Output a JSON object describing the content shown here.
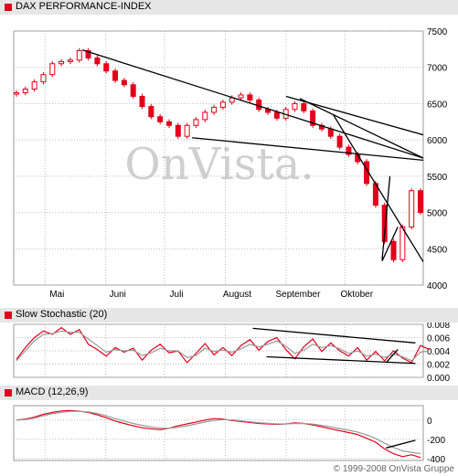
{
  "watermark": "OnVista.",
  "copyright": "© 1999-2008 OnVista Gruppe",
  "colors": {
    "price": "#e2001a",
    "signal": "#999999",
    "trend": "#000000",
    "header_bg": "#e6e6e6",
    "grid": "#bbbbbb"
  },
  "months": [
    "Mai",
    "Juni",
    "Juli",
    "August",
    "September",
    "Oktober"
  ],
  "chart_data": [
    {
      "type": "candlestick",
      "title": "DAX PERFORMANCE-INDEX",
      "x_tick_labels": [
        "Mai",
        "Juni",
        "Juli",
        "August",
        "September",
        "Oktober"
      ],
      "y_ticks": [
        7500,
        7000,
        6500,
        6000,
        5500,
        5000,
        4500,
        4000
      ],
      "ylim": [
        4000,
        7500
      ],
      "grid": true,
      "close_series": [
        6650,
        6700,
        6800,
        6900,
        7050,
        7080,
        7100,
        7230,
        7130,
        7050,
        6950,
        6820,
        6760,
        6600,
        6460,
        6320,
        6250,
        6200,
        6050,
        6200,
        6280,
        6380,
        6450,
        6520,
        6580,
        6620,
        6550,
        6420,
        6380,
        6300,
        6420,
        6500,
        6400,
        6200,
        6150,
        6050,
        5900,
        5800,
        5700,
        5400,
        5100,
        4600,
        4350,
        4800,
        5300,
        5000
      ],
      "trendlines": [
        {
          "x": [
            "2008-05-20",
            "2008-11-10"
          ],
          "y": [
            7240,
            5750
          ]
        },
        {
          "x": [
            "2008-07-15",
            "2008-11-10"
          ],
          "y": [
            6030,
            5720
          ]
        },
        {
          "x": [
            "2008-09-01",
            "2008-11-10"
          ],
          "y": [
            6600,
            6070
          ]
        },
        {
          "x": [
            "2008-09-08",
            "2008-11-10"
          ],
          "y": [
            6570,
            5750
          ]
        },
        {
          "x": [
            "2008-09-25",
            "2008-11-10"
          ],
          "y": [
            6350,
            4320
          ]
        },
        {
          "x": [
            "2008-10-20",
            "2008-10-28"
          ],
          "y": [
            4330,
            4800
          ]
        },
        {
          "x": [
            "2008-10-20",
            "2008-10-24"
          ],
          "y": [
            4350,
            5500
          ]
        }
      ]
    },
    {
      "type": "line",
      "title": "Slow Stochastic (20)",
      "y_ticks": [
        "0.008",
        "0.006",
        "0.004",
        "0.002",
        "0.000"
      ],
      "ylim": [
        0,
        0.008
      ],
      "grid": true,
      "series": [
        {
          "values": [
            0.0027,
            0.0045,
            0.006,
            0.007,
            0.0065,
            0.0075,
            0.0065,
            0.0072,
            0.005,
            0.0042,
            0.0032,
            0.0045,
            0.0038,
            0.0044,
            0.0026,
            0.0041,
            0.005,
            0.0037,
            0.004,
            0.0022,
            0.0036,
            0.0051,
            0.0034,
            0.0045,
            0.0033,
            0.0048,
            0.0057,
            0.0041,
            0.0054,
            0.006,
            0.0042,
            0.0028,
            0.0046,
            0.0058,
            0.0039,
            0.0052,
            0.004,
            0.0032,
            0.0045,
            0.0026,
            0.0039,
            0.0025,
            0.004,
            0.0029,
            0.0022,
            0.0048,
            0.0042
          ]
        },
        {
          "values": [
            0.0025,
            0.004,
            0.0055,
            0.0065,
            0.0066,
            0.007,
            0.0068,
            0.0068,
            0.0058,
            0.0048,
            0.0038,
            0.0042,
            0.004,
            0.0041,
            0.0033,
            0.0037,
            0.0044,
            0.004,
            0.004,
            0.003,
            0.0033,
            0.0044,
            0.0039,
            0.0041,
            0.0038,
            0.0043,
            0.005,
            0.0046,
            0.005,
            0.0055,
            0.0047,
            0.0036,
            0.0041,
            0.005,
            0.0045,
            0.0048,
            0.0043,
            0.0036,
            0.004,
            0.0032,
            0.0035,
            0.003,
            0.0035,
            0.0031,
            0.0025,
            0.0038,
            0.004
          ]
        }
      ],
      "trendlines": [
        {
          "x": [
            "2008-08-15",
            "2008-11-06"
          ],
          "y": [
            0.0074,
            0.0052
          ]
        },
        {
          "x": [
            "2008-08-22",
            "2008-11-06"
          ],
          "y": [
            0.0031,
            0.0021
          ]
        },
        {
          "x": [
            "2008-10-22",
            "2008-10-28"
          ],
          "y": [
            0.0022,
            0.0042
          ]
        }
      ]
    },
    {
      "type": "line",
      "title": "MACD (12,26,9)",
      "y_ticks": [
        "0",
        "-200",
        "-400"
      ],
      "ylim": [
        -420,
        150
      ],
      "grid": true,
      "series": [
        {
          "values": [
            0,
            10,
            30,
            60,
            80,
            95,
            100,
            92,
            80,
            55,
            25,
            -10,
            -35,
            -60,
            -80,
            -90,
            -100,
            -85,
            -60,
            -40,
            -20,
            0,
            15,
            10,
            -5,
            -15,
            -25,
            -35,
            -40,
            -45,
            -40,
            -30,
            -35,
            -50,
            -70,
            -90,
            -110,
            -130,
            -150,
            -190,
            -230,
            -300,
            -350,
            -380,
            -360,
            -390
          ]
        },
        {
          "values": [
            0,
            5,
            20,
            45,
            65,
            80,
            90,
            90,
            85,
            70,
            45,
            15,
            -10,
            -35,
            -55,
            -70,
            -85,
            -85,
            -75,
            -60,
            -40,
            -20,
            -5,
            5,
            2,
            -8,
            -18,
            -28,
            -34,
            -40,
            -40,
            -36,
            -35,
            -42,
            -55,
            -70,
            -88,
            -106,
            -125,
            -155,
            -190,
            -240,
            -285,
            -320,
            -335,
            -350
          ]
        }
      ],
      "trendlines": [
        {
          "x": [
            "2008-10-22",
            "2008-11-06"
          ],
          "y": [
            -290,
            -210
          ]
        }
      ]
    }
  ]
}
